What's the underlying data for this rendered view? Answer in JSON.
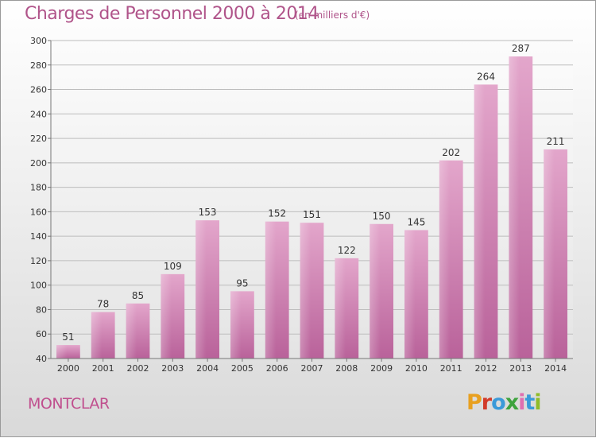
{
  "chart_data": {
    "type": "bar",
    "title": "Charges de Personnel 2000 à 2014",
    "subtitle": "(en milliers d'€)",
    "categories": [
      "2000",
      "2001",
      "2002",
      "2003",
      "2004",
      "2005",
      "2006",
      "2007",
      "2008",
      "2009",
      "2010",
      "2011",
      "2012",
      "2013",
      "2014"
    ],
    "values": [
      51,
      78,
      85,
      109,
      153,
      95,
      152,
      151,
      122,
      150,
      145,
      202,
      264,
      287,
      211
    ],
    "ylim": [
      40,
      300
    ],
    "yticks": [
      40,
      60,
      80,
      100,
      120,
      140,
      160,
      180,
      200,
      220,
      240,
      260,
      280,
      300
    ],
    "xlabel": "",
    "ylabel": "",
    "bar_color": "#c9699f",
    "grid": true
  },
  "commune": "MONTCLAR",
  "logo_letters": [
    "P",
    "r",
    "o",
    "x",
    "i",
    "t",
    "i"
  ]
}
